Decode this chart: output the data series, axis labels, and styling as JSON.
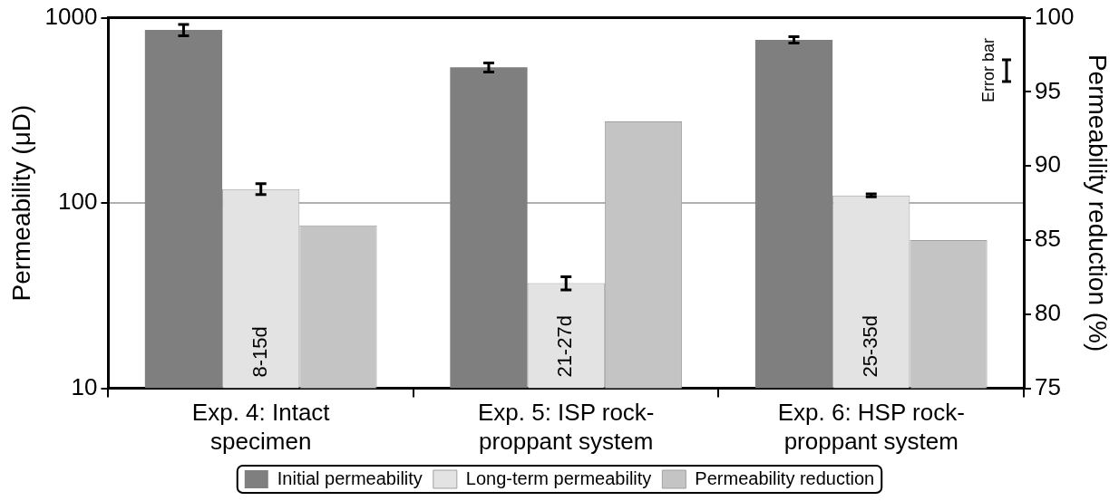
{
  "chart_data": {
    "type": "bar",
    "ylabel": "Permeability (μD)",
    "y2label": "Permeability reduction (%)",
    "categories": [
      "Exp. 4: Intact specimen",
      "Exp. 5: ISP rock-proppant system",
      "Exp. 6: HSP rock-proppant system"
    ],
    "series": [
      {
        "name": "Initial permeability",
        "color": "#7f7f7f",
        "values": [
          860,
          540,
          760
        ],
        "errors": [
          60,
          30,
          30
        ]
      },
      {
        "name": "Long-term permeability",
        "color": "#e3e3e3",
        "values": [
          119,
          37,
          110
        ],
        "errors": [
          8,
          3,
          2
        ],
        "value_labels": [
          "8-15d",
          "21-27d",
          "25-35d"
        ]
      },
      {
        "name": "Permeability reduction",
        "color": "#c4c4c4",
        "axis": "y2",
        "values": [
          86,
          93,
          85
        ]
      }
    ],
    "log": "y",
    "ylim": [
      10,
      1000
    ],
    "yticks": [
      10,
      100,
      1000
    ],
    "y2lim": [
      75,
      100
    ],
    "y2ticks": [
      75,
      80,
      85,
      90,
      95,
      100
    ],
    "grid": "y",
    "legend": "bottom",
    "annotations": [
      "Error bar"
    ]
  }
}
